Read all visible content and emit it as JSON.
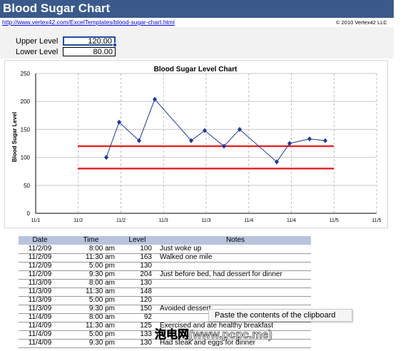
{
  "header": {
    "title": "Blood Sugar Chart",
    "url": "http://www.vertex42.com/ExcelTemplates/blood-sugar-chart.html",
    "copyright": "© 2010 Vertex42 LLC"
  },
  "params": {
    "upper_label": "Upper Level",
    "upper_value": "120.00",
    "lower_label": "Lower Level",
    "lower_value": "80.00"
  },
  "colors": {
    "header_bg": "#3a5a8c",
    "series": "#1f3a93",
    "limit_lines": "#e8282a",
    "table_header": "#b8c4dc"
  },
  "chart_data": {
    "type": "line",
    "title": "Blood Sugar Level Chart",
    "xlabel": "",
    "ylabel": "Blood Sugar Level",
    "ylim": [
      0,
      250
    ],
    "yticks": [
      "0",
      "50",
      "100",
      "150",
      "200",
      "250"
    ],
    "xticks": [
      "11/1",
      "11/2",
      "11/2",
      "11/3",
      "11/3",
      "11/4",
      "11/4",
      "11/5",
      "11/5"
    ],
    "grid": true,
    "x": [
      "11/2/09 8:00 am",
      "11/2/09 11:30 am",
      "11/2/09 5:00 pm",
      "11/2/09 9:30 pm",
      "11/3/09 8:00 am",
      "11/3/09 11:30 am",
      "11/3/09 5:00 pm",
      "11/3/09 9:30 pm",
      "11/4/09 8:00 am",
      "11/4/09 11:30 am",
      "11/4/09 5:00 pm",
      "11/4/09 9:30 pm"
    ],
    "series": [
      {
        "values": [
          100,
          163,
          130,
          204,
          130,
          148,
          120,
          150,
          92,
          125,
          133,
          130
        ]
      }
    ],
    "upper_level": 120,
    "lower_level": 80
  },
  "table": {
    "headers": [
      "Date",
      "Time",
      "Level",
      "Notes"
    ],
    "rows": [
      [
        "11/2/09",
        "8:00 am",
        "100",
        "Just woke up"
      ],
      [
        "11/2/09",
        "11:30 am",
        "163",
        "Walked one mile"
      ],
      [
        "11/2/09",
        "5:00 pm",
        "130",
        ""
      ],
      [
        "11/2/09",
        "9:30 pm",
        "204",
        "Just before bed, had dessert for dinner"
      ],
      [
        "11/3/09",
        "8:00 am",
        "130",
        ""
      ],
      [
        "11/3/09",
        "11:30 am",
        "148",
        ""
      ],
      [
        "11/3/09",
        "5:00 pm",
        "120",
        ""
      ],
      [
        "11/3/09",
        "9:30 pm",
        "150",
        "Avoided dessert"
      ],
      [
        "11/4/09",
        "8:00 am",
        "92",
        ""
      ],
      [
        "11/4/09",
        "11:30 am",
        "125",
        "Exercised and ate healthy breakfast"
      ],
      [
        "11/4/09",
        "5:00 pm",
        "133",
        ""
      ],
      [
        "11/4/09",
        "9:30 pm",
        "130",
        "Had steak and eggs for dinner"
      ]
    ]
  },
  "tooltip": "Paste the contents of the clipboard",
  "watermark": "泡电网(www.pcpc.me)"
}
